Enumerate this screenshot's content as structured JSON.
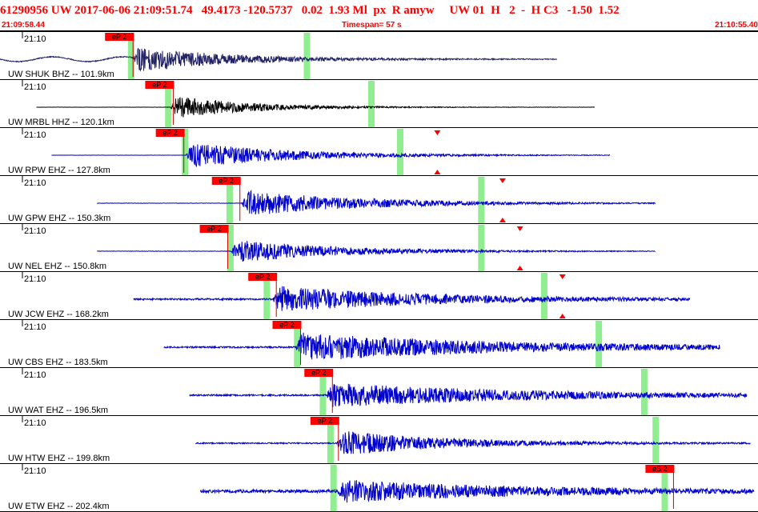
{
  "header": {
    "title": "61290956 UW 2017-06-06 21:09:51.74   49.4173 -120.5737   0.02  1.93 Ml  px  R amyw     UW 01  H   2  -  H C3   -1.50  1.52",
    "start_time": "21:09:58.44",
    "timespan": "Timespan=  57 s",
    "end_time": "21:10:55.40"
  },
  "colors": {
    "header_text": "#ff0000",
    "pick_box": "#ff0000",
    "pick_line": "#cc0000",
    "window_marker": "#90ee90",
    "triangle": "#ff0000"
  },
  "traces": [
    {
      "tick_label": "21:10",
      "label": "UW SHUK BHZ -- 101.9km",
      "color": "#222266",
      "start": 0.0,
      "end": 0.735,
      "arrival": 0.175,
      "amp": 0.55,
      "pre_noise": 0.04,
      "coda": 0.12,
      "pick": "eP 2",
      "pick_pos": 0.147,
      "green": [
        0.173,
        0.405
      ],
      "triangles": [],
      "pre_wave": true
    },
    {
      "tick_label": "21:10",
      "label": "UW MRBL HHZ -- 120.1km",
      "color": "#000000",
      "start": 0.048,
      "end": 0.785,
      "arrival": 0.225,
      "amp": 0.5,
      "pre_noise": 0.01,
      "coda": 0.1,
      "pick": "eP 2",
      "pick_pos": 0.2,
      "green": [
        0.222,
        0.49
      ],
      "triangles": []
    },
    {
      "tick_label": "21:10",
      "label": "UW RPW EHZ -- 127.8km",
      "color": "#0000cc",
      "start": 0.068,
      "end": 0.805,
      "arrival": 0.245,
      "amp": 0.55,
      "pre_noise": 0.01,
      "coda": 0.14,
      "pick": "eP 2",
      "pick_pos": 0.214,
      "green": [
        0.244,
        0.528
      ],
      "triangles": [
        0.577
      ]
    },
    {
      "tick_label": "21:10",
      "label": "UW GPW EHZ -- 150.3km",
      "color": "#0000cc",
      "start": 0.128,
      "end": 0.865,
      "arrival": 0.318,
      "amp": 0.55,
      "pre_noise": 0.015,
      "coda": 0.16,
      "pick": "eP 2",
      "pick_pos": 0.288,
      "green": [
        0.303,
        0.635
      ],
      "triangles": [
        0.663
      ]
    },
    {
      "tick_label": "21:10",
      "label": "UW NEL EHZ -- 150.8km",
      "color": "#0000cc",
      "start": 0.128,
      "end": 0.865,
      "arrival": 0.305,
      "amp": 0.5,
      "pre_noise": 0.015,
      "coda": 0.14,
      "pick": "eP 2",
      "pick_pos": 0.272,
      "green": [
        0.304,
        0.635
      ],
      "triangles": [
        0.686
      ]
    },
    {
      "tick_label": "21:10",
      "label": "UW JCW EHZ -- 168.2km",
      "color": "#0000cc",
      "start": 0.176,
      "end": 0.91,
      "arrival": 0.36,
      "amp": 0.55,
      "pre_noise": 0.07,
      "coda": 0.2,
      "pick": "eP 2",
      "pick_pos": 0.336,
      "green": [
        0.352,
        0.718
      ],
      "triangles": [
        0.742
      ]
    },
    {
      "tick_label": "21:10",
      "label": "UW CBS EHZ -- 183.5km",
      "color": "#0000cc",
      "start": 0.216,
      "end": 0.95,
      "arrival": 0.39,
      "amp": 0.6,
      "pre_noise": 0.07,
      "coda": 0.26,
      "pick": "eP 2",
      "pick_pos": 0.368,
      "green": [
        0.392,
        0.79
      ],
      "triangles": []
    },
    {
      "tick_label": "21:10",
      "label": "UW WAT EHZ -- 196.5km",
      "color": "#0000cc",
      "start": 0.25,
      "end": 0.985,
      "arrival": 0.43,
      "amp": 0.5,
      "pre_noise": 0.07,
      "coda": 0.26,
      "pick": "eP 2",
      "pick_pos": 0.41,
      "green": [
        0.426,
        0.85
      ],
      "triangles": []
    },
    {
      "tick_label": "21:10",
      "label": "UW HTW EHZ -- 199.8km",
      "color": "#0000cc",
      "start": 0.258,
      "end": 0.99,
      "arrival": 0.444,
      "amp": 0.55,
      "pre_noise": 0.05,
      "coda": 0.14,
      "pick": "eP 2",
      "pick_pos": 0.418,
      "green": [
        0.436,
        0.865
      ],
      "triangles": []
    },
    {
      "tick_label": "21:10",
      "label": "UW ETW EHZ -- 202.4km",
      "color": "#0000cc",
      "start": 0.264,
      "end": 0.995,
      "arrival": 0.445,
      "amp": 0.45,
      "pre_noise": 0.13,
      "coda": 0.24,
      "pick": "eS 2",
      "pick_pos": 0.86,
      "green": [
        0.44,
        0.877
      ],
      "triangles": []
    }
  ]
}
